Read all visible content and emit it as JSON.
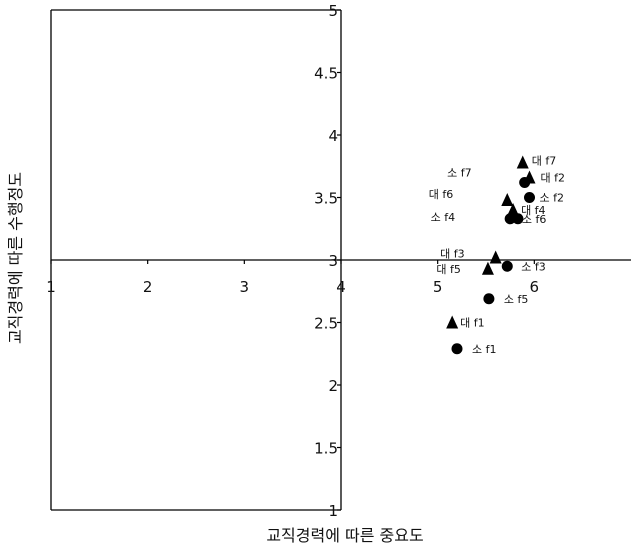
{
  "chart_data": {
    "type": "scatter",
    "title": "",
    "xlabel": "교직경력에 따른 중요도",
    "ylabel": "교직경력에 따른 수행정도",
    "xlim": [
      1,
      7.0
    ],
    "ylim": [
      1,
      5
    ],
    "x_ticks": [
      "1",
      "2",
      "3",
      "4",
      "5",
      "6"
    ],
    "y_ticks": [
      "1",
      "1.5",
      "2",
      "2.5",
      "3",
      "3.5",
      "4",
      "4.5",
      "5"
    ],
    "quadrant_center": [
      4,
      3
    ],
    "grid": false,
    "legend": "none",
    "series": [
      {
        "marker": "triangle",
        "points": [
          {
            "label": "대 f1",
            "x": 5.15,
            "y": 2.5
          },
          {
            "label": "대 f2",
            "x": 5.95,
            "y": 3.66
          },
          {
            "label": "대 f3",
            "x": 5.6,
            "y": 3.02
          },
          {
            "label": "대 f4",
            "x": 5.78,
            "y": 3.4
          },
          {
            "label": "대 f5",
            "x": 5.52,
            "y": 2.93
          },
          {
            "label": "대 f6",
            "x": 5.72,
            "y": 3.48
          },
          {
            "label": "대 f7",
            "x": 5.88,
            "y": 3.78
          }
        ]
      },
      {
        "marker": "circle",
        "points": [
          {
            "label": "소 f1",
            "x": 5.2,
            "y": 2.29
          },
          {
            "label": "소 f2",
            "x": 5.95,
            "y": 3.5
          },
          {
            "label": "소 f3",
            "x": 5.72,
            "y": 2.95
          },
          {
            "label": "소 f4",
            "x": 5.75,
            "y": 3.33
          },
          {
            "label": "소 f5",
            "x": 5.53,
            "y": 2.69
          },
          {
            "label": "소 f6",
            "x": 5.83,
            "y": 3.33
          },
          {
            "label": "소 f7",
            "x": 5.9,
            "y": 3.62
          }
        ]
      }
    ]
  }
}
